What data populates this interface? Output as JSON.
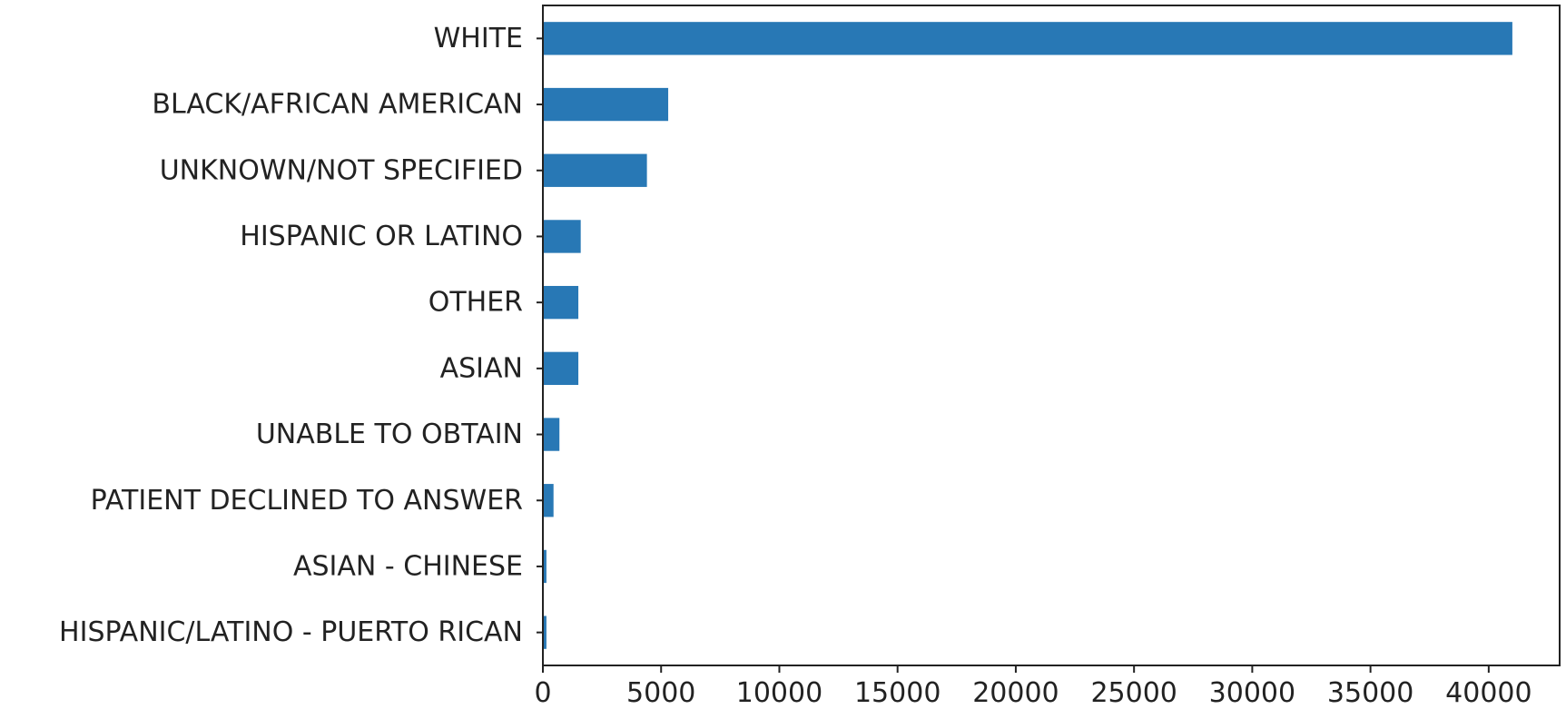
{
  "chart_data": {
    "type": "bar",
    "orientation": "horizontal",
    "title": "",
    "xlabel": "",
    "ylabel": "",
    "categories": [
      "WHITE",
      "BLACK/AFRICAN AMERICAN",
      "UNKNOWN/NOT SPECIFIED",
      "HISPANIC OR LATINO",
      "OTHER",
      "ASIAN",
      "UNABLE TO OBTAIN",
      "PATIENT DECLINED TO ANSWER",
      "ASIAN - CHINESE",
      "HISPANIC/LATINO - PUERTO RICAN"
    ],
    "values": [
      41000,
      5300,
      4400,
      1600,
      1500,
      1500,
      700,
      450,
      150,
      150
    ],
    "xlim": [
      0,
      43000
    ],
    "xticks": [
      0,
      5000,
      10000,
      15000,
      20000,
      25000,
      30000,
      35000,
      40000
    ],
    "grid": false,
    "legend": "none",
    "bar_color": "#2878b5"
  }
}
